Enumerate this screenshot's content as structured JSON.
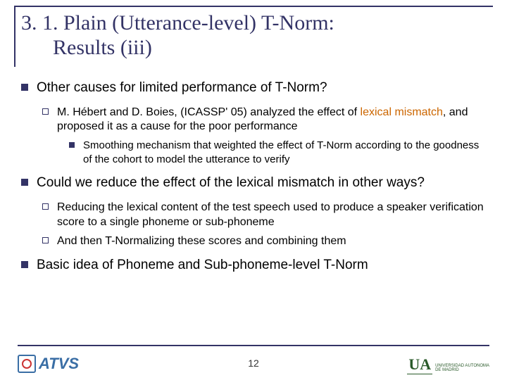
{
  "title_line1": "3. 1. Plain (Utterance-level) T-Norm:",
  "title_line2": "Results (iii)",
  "bullets": {
    "b1": "Other causes for limited performance of T-Norm?",
    "b1_1_a": "M. Hébert and D. Boies, (ICASSP' 05) analyzed the effect of ",
    "b1_1_hl": "lexical mismatch",
    "b1_1_b": ", and proposed it as a cause for the poor performance",
    "b1_1_1": "Smoothing mechanism that weighted the effect of T-Norm according to the goodness of the cohort to model the utterance to verify",
    "b2": "Could we reduce the effect of the lexical mismatch in other ways?",
    "b2_1": "Reducing the lexical content of the test speech used to produce a speaker verification score to a single phoneme or sub-phoneme",
    "b2_2": "And then T-Normalizing these scores and combining them",
    "b3": "Basic idea of Phoneme and Sub-phoneme-level T-Norm"
  },
  "page_number": "12",
  "logos": {
    "left_text": "ATVS",
    "right_ua": "UA",
    "right_uam1": "UNIVERSIDAD AUTONOMA",
    "right_uam2": "DE MADRID"
  },
  "colors": {
    "accent": "#333366",
    "highlight": "#cc6600"
  }
}
